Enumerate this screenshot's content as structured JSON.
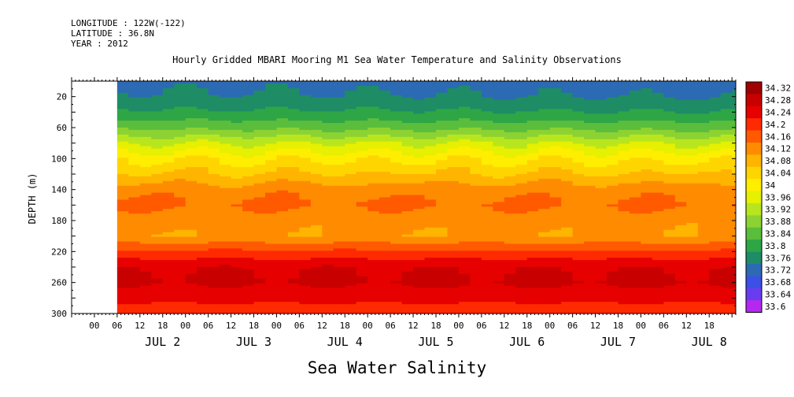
{
  "header": {
    "longitude": "LONGITUDE : 122W(-122)",
    "latitude": "LATITUDE : 36.8N",
    "year": "YEAR : 2012"
  },
  "chart_data": {
    "type": "heatmap",
    "title": "Hourly Gridded MBARI Mooring M1 Sea Water Temperature and Salinity Observations",
    "subtitle": "Sea Water Salinity",
    "ylabel": "DEPTH (m)",
    "ylim": [
      300,
      0
    ],
    "y_ticks": [
      20,
      60,
      100,
      140,
      180,
      220,
      260,
      300
    ],
    "hour_ticks": [
      "00",
      "06",
      "12",
      "18",
      "00",
      "06",
      "12",
      "18",
      "00",
      "06",
      "12",
      "18",
      "00",
      "06",
      "12",
      "18",
      "00",
      "06",
      "12",
      "18",
      "00",
      "06",
      "12",
      "18",
      "00",
      "06",
      "12",
      "18"
    ],
    "day_labels": [
      "JUL  2",
      "JUL  3",
      "JUL  4",
      "JUL  5",
      "JUL  6",
      "JUL  7",
      "JUL  8"
    ],
    "x_range_hours": [
      -12,
      163
    ],
    "data_start_hour": 0,
    "grid": false,
    "legend": "right",
    "colorbar_levels": [
      "34.32",
      "34.28",
      "34.24",
      "34.2",
      "34.16",
      "34.12",
      "34.08",
      "34.04",
      "34",
      "33.96",
      "33.92",
      "33.88",
      "33.84",
      "33.8",
      "33.76",
      "33.72",
      "33.68",
      "33.64",
      "33.6"
    ],
    "colorbar_colors": [
      "#a00000",
      "#c80000",
      "#e60000",
      "#ff2a00",
      "#ff5a00",
      "#ff8c00",
      "#ffb400",
      "#ffd500",
      "#ffee00",
      "#e6f000",
      "#b8e61e",
      "#8cd232",
      "#5abe3c",
      "#2ea646",
      "#1e8c64",
      "#2c6ab4",
      "#3c50e6",
      "#6a3cf0",
      "#b428f0"
    ],
    "color_min": 33.6,
    "color_max": 34.34,
    "profile": {
      "depths": [
        0,
        20,
        40,
        60,
        80,
        100,
        120,
        140,
        160,
        180,
        200,
        220,
        240,
        260,
        280,
        300
      ],
      "salinity": [
        33.74,
        33.76,
        33.8,
        33.86,
        33.95,
        34.02,
        34.07,
        34.13,
        34.15,
        34.12,
        34.11,
        34.19,
        34.26,
        34.27,
        34.23,
        34.21
      ]
    }
  }
}
